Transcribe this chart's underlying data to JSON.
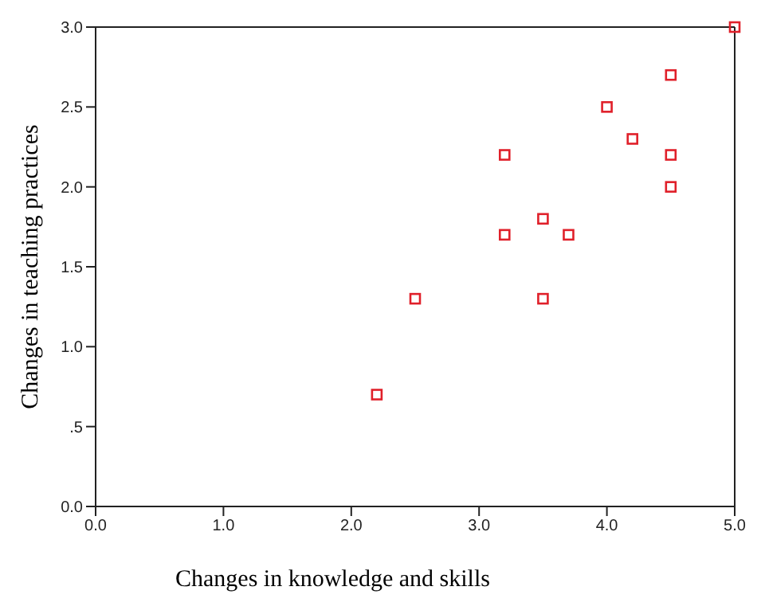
{
  "chart_data": {
    "type": "scatter",
    "xlabel": "Changes in knowledge and skills",
    "ylabel": "Changes in teaching practices",
    "x": [
      2.2,
      2.5,
      3.2,
      3.2,
      3.5,
      3.5,
      3.7,
      4.0,
      4.2,
      4.5,
      4.5,
      4.5,
      5.0
    ],
    "values": [
      0.7,
      1.3,
      2.2,
      1.7,
      1.8,
      1.3,
      1.7,
      2.5,
      2.3,
      2.7,
      2.2,
      2.0,
      3.0
    ],
    "color": "#e0202a",
    "marker": "square",
    "grid": false,
    "xlim": [
      0,
      5
    ],
    "xticks": [
      {
        "value": 0,
        "label": "0.0"
      },
      {
        "value": 1,
        "label": "1.0"
      },
      {
        "value": 2,
        "label": "2.0"
      },
      {
        "value": 3,
        "label": "3.0"
      },
      {
        "value": 4,
        "label": "4.0"
      },
      {
        "value": 5,
        "label": "5.0"
      }
    ],
    "ylim": [
      0,
      3
    ],
    "yticks": [
      {
        "value": 0,
        "label": "0.0"
      },
      {
        "value": 0.5,
        "label": ".5"
      },
      {
        "value": 1,
        "label": "1.0"
      },
      {
        "value": 1.5,
        "label": "1.5"
      },
      {
        "value": 2,
        "label": "2.0"
      },
      {
        "value": 2.5,
        "label": "2.5"
      },
      {
        "value": 3,
        "label": "3.0"
      }
    ]
  }
}
